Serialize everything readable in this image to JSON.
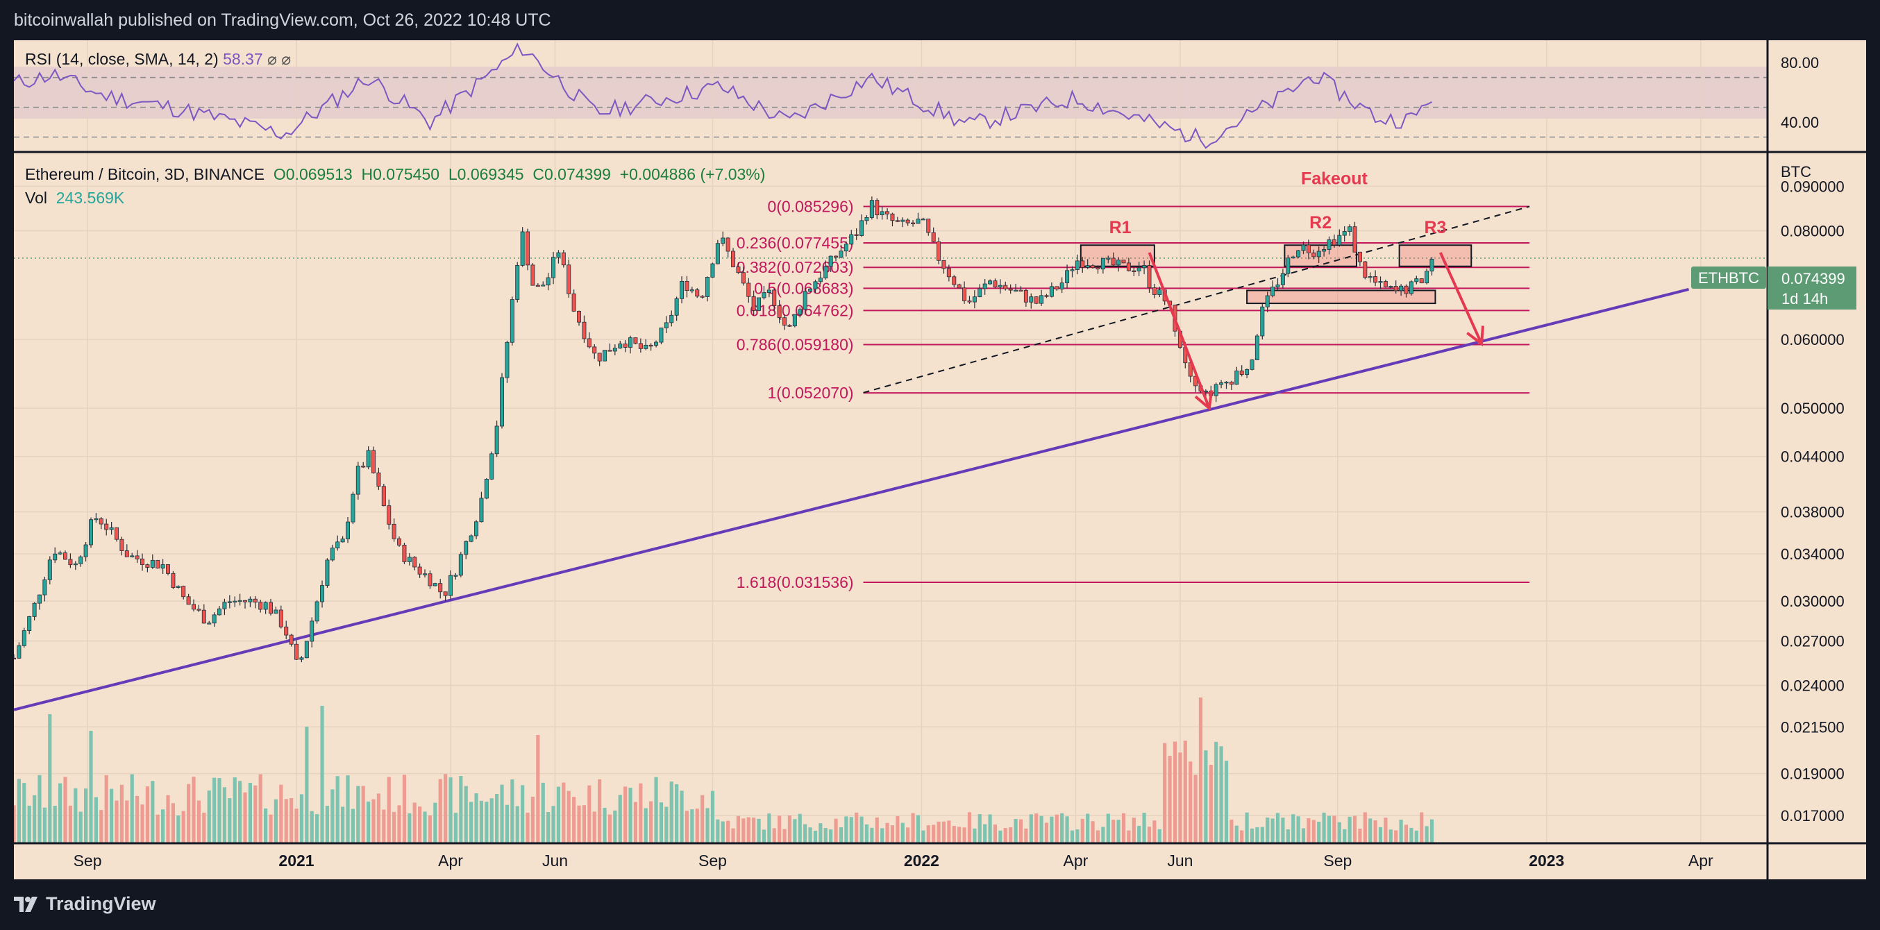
{
  "header": {
    "publish_text": "bitcoinwallah published on TradingView.com, Oct 26, 2022 10:48 UTC"
  },
  "footer": {
    "brand": "TradingView"
  },
  "colors": {
    "up": "#26a69a",
    "down": "#ef5350",
    "fib": "#c2185b",
    "trendline": "#673ab7",
    "rsi": "#7e57c2",
    "annotation": "#e53950",
    "badge": "#5d9b74",
    "background": "#f4e2cf",
    "outer": "#131722"
  },
  "rsi_panel": {
    "legend": "RSI (14, close, SMA, 14, 2)",
    "value": "58.37",
    "na_symbols": "⌀ ⌀",
    "axis_labels": [
      "80.00",
      "40.00"
    ]
  },
  "main_panel": {
    "symbol": "Ethereum / Bitcoin, 3D, BINANCE",
    "open": "O0.069513",
    "high": "H0.075450",
    "low": "L0.069345",
    "close": "C0.074399",
    "change": "+0.004886 (+7.03%)",
    "vol_label": "Vol",
    "vol_value": "243.569K",
    "price_unit": "BTC",
    "symbol_badge": "ETHBTC",
    "price_badge": "0.074399",
    "countdown": "1d 14h"
  },
  "chart_data": {
    "type": "candlestick",
    "symbol": "ETHBTC",
    "exchange": "BINANCE",
    "timeframe": "3D",
    "y_scale": "log",
    "ylim": [
      0.0158,
      0.098
    ],
    "y_ticks": [
      0.09,
      0.08,
      0.06,
      0.05,
      0.044,
      0.038,
      0.034,
      0.03,
      0.027,
      0.024,
      0.0215,
      0.019,
      0.017
    ],
    "y_tick_labels": [
      "0.090000",
      "0.080000",
      "0.060000",
      "0.050000",
      "0.044000",
      "0.038000",
      "0.034000",
      "0.030000",
      "0.027000",
      "0.024000",
      "0.021500",
      "0.019000",
      "0.017000"
    ],
    "x_range": [
      "2020-07-20",
      "2023-05-10"
    ],
    "x_ticks": [
      {
        "label": "Sep",
        "date": "2020-09-01"
      },
      {
        "label": "2021",
        "date": "2021-01-01"
      },
      {
        "label": "Apr",
        "date": "2021-04-01"
      },
      {
        "label": "Jun",
        "date": "2021-06-01"
      },
      {
        "label": "Sep",
        "date": "2021-09-01"
      },
      {
        "label": "2022",
        "date": "2022-01-01"
      },
      {
        "label": "Apr",
        "date": "2022-04-01"
      },
      {
        "label": "Jun",
        "date": "2022-06-01"
      },
      {
        "label": "Sep",
        "date": "2022-09-01"
      },
      {
        "label": "2023",
        "date": "2023-01-01"
      },
      {
        "label": "Apr",
        "date": "2023-04-01"
      }
    ],
    "price_path": [
      [
        "2020-07-20",
        0.0258
      ],
      [
        "2020-08-02",
        0.03
      ],
      [
        "2020-08-12",
        0.0345
      ],
      [
        "2020-08-25",
        0.033
      ],
      [
        "2020-09-05",
        0.0375
      ],
      [
        "2020-09-10",
        0.037
      ],
      [
        "2020-09-25",
        0.0338
      ],
      [
        "2020-10-15",
        0.033
      ],
      [
        "2020-10-28",
        0.03
      ],
      [
        "2020-11-10",
        0.0285
      ],
      [
        "2020-11-22",
        0.03
      ],
      [
        "2020-12-05",
        0.03
      ],
      [
        "2020-12-15",
        0.0297
      ],
      [
        "2020-12-25",
        0.028
      ],
      [
        "2021-01-02",
        0.025
      ],
      [
        "2021-01-10",
        0.0285
      ],
      [
        "2021-01-20",
        0.034
      ],
      [
        "2021-01-28",
        0.035
      ],
      [
        "2021-02-05",
        0.042
      ],
      [
        "2021-02-12",
        0.044
      ],
      [
        "2021-02-20",
        0.039
      ],
      [
        "2021-03-01",
        0.0345
      ],
      [
        "2021-03-10",
        0.033
      ],
      [
        "2021-03-20",
        0.0318
      ],
      [
        "2021-03-28",
        0.0305
      ],
      [
        "2021-04-05",
        0.033
      ],
      [
        "2021-04-18",
        0.0385
      ],
      [
        "2021-04-28",
        0.048
      ],
      [
        "2021-05-10",
        0.074
      ],
      [
        "2021-05-13",
        0.079
      ],
      [
        "2021-05-20",
        0.068
      ],
      [
        "2021-05-27",
        0.07
      ],
      [
        "2021-06-03",
        0.076
      ],
      [
        "2021-06-12",
        0.065
      ],
      [
        "2021-06-25",
        0.057
      ],
      [
        "2021-07-10",
        0.06
      ],
      [
        "2021-07-25",
        0.058
      ],
      [
        "2021-08-05",
        0.062
      ],
      [
        "2021-08-15",
        0.07
      ],
      [
        "2021-08-25",
        0.067
      ],
      [
        "2021-09-05",
        0.079
      ],
      [
        "2021-09-15",
        0.072
      ],
      [
        "2021-09-25",
        0.065
      ],
      [
        "2021-10-05",
        0.068
      ],
      [
        "2021-10-15",
        0.061
      ],
      [
        "2021-10-25",
        0.068
      ],
      [
        "2021-11-05",
        0.072
      ],
      [
        "2021-11-15",
        0.076
      ],
      [
        "2021-11-25",
        0.08
      ],
      [
        "2021-12-02",
        0.086
      ],
      [
        "2021-12-10",
        0.083
      ],
      [
        "2021-12-20",
        0.081
      ],
      [
        "2022-01-01",
        0.082
      ],
      [
        "2022-01-10",
        0.075
      ],
      [
        "2022-01-20",
        0.07
      ],
      [
        "2022-01-28",
        0.066
      ],
      [
        "2022-02-10",
        0.07
      ],
      [
        "2022-02-25",
        0.068
      ],
      [
        "2022-03-10",
        0.066
      ],
      [
        "2022-03-25",
        0.07
      ],
      [
        "2022-04-01",
        0.074
      ],
      [
        "2022-04-15",
        0.0735
      ],
      [
        "2022-04-30",
        0.0725
      ],
      [
        "2022-05-10",
        0.073
      ],
      [
        "2022-05-15",
        0.069
      ],
      [
        "2022-05-25",
        0.066
      ],
      [
        "2022-06-05",
        0.056
      ],
      [
        "2022-06-15",
        0.052
      ],
      [
        "2022-06-25",
        0.053
      ],
      [
        "2022-07-05",
        0.055
      ],
      [
        "2022-07-12",
        0.056
      ],
      [
        "2022-07-18",
        0.064
      ],
      [
        "2022-07-28",
        0.07
      ],
      [
        "2022-08-08",
        0.077
      ],
      [
        "2022-08-18",
        0.076
      ],
      [
        "2022-08-28",
        0.078
      ],
      [
        "2022-09-08",
        0.08
      ],
      [
        "2022-09-15",
        0.072
      ],
      [
        "2022-09-25",
        0.069
      ],
      [
        "2022-10-05",
        0.068
      ],
      [
        "2022-10-15",
        0.069
      ],
      [
        "2022-10-22",
        0.071
      ],
      [
        "2022-10-26",
        0.074399
      ]
    ],
    "volume_spikes": [
      [
        "2020-08-10",
        3.1
      ],
      [
        "2020-09-02",
        2.7
      ],
      [
        "2021-01-08",
        2.8
      ],
      [
        "2021-01-16",
        3.3
      ],
      [
        "2021-05-22",
        2.6
      ],
      [
        "2022-06-14",
        3.5
      ]
    ],
    "fib_levels": [
      {
        "ratio": "0",
        "value": 0.085296,
        "label": "0(0.085296)"
      },
      {
        "ratio": "0.236",
        "value": 0.077455,
        "label": "0.236(0.077455)"
      },
      {
        "ratio": "0.382",
        "value": 0.072603,
        "label": "0.382(0.072603)"
      },
      {
        "ratio": "0.5",
        "value": 0.068683,
        "label": "0.5(0.068683)"
      },
      {
        "ratio": "0.618",
        "value": 0.064762,
        "label": "0.618(0.064762)"
      },
      {
        "ratio": "0.786",
        "value": 0.05918,
        "label": "0.786(0.059180)"
      },
      {
        "ratio": "1",
        "value": 0.05207,
        "label": "1(0.052070)"
      },
      {
        "ratio": "1.618",
        "value": 0.031536,
        "label": "1.618(0.031536)"
      }
    ],
    "fib_range": [
      "2021-11-28",
      "2022-12-22"
    ],
    "annotations": [
      {
        "label": "R1",
        "date": "2022-04-27",
        "price": 0.0795
      },
      {
        "label": "R2",
        "date": "2022-08-22",
        "price": 0.0805
      },
      {
        "label": "R3",
        "date": "2022-10-28",
        "price": 0.0795
      },
      {
        "label": "Fakeout",
        "date": "2022-08-30",
        "price": 0.0905
      }
    ],
    "resistance_boxes": [
      {
        "from": "2022-04-04",
        "to": "2022-05-17",
        "low": 0.0728,
        "high": 0.077
      },
      {
        "from": "2022-08-01",
        "to": "2022-09-12",
        "low": 0.0728,
        "high": 0.077
      },
      {
        "from": "2022-10-07",
        "to": "2022-11-18",
        "low": 0.0728,
        "high": 0.077
      },
      {
        "from": "2022-07-10",
        "to": "2022-10-28",
        "low": 0.066,
        "high": 0.0683
      }
    ],
    "trendline": {
      "from": [
        "2020-07-20",
        0.0225
      ],
      "to": [
        "2023-03-25",
        0.0685
      ]
    },
    "dashed_trendline": {
      "from": [
        "2021-11-28",
        0.0521
      ],
      "to": [
        "2022-12-22",
        0.0853
      ]
    },
    "arrows": [
      {
        "from": [
          "2022-05-14",
          0.0755
        ],
        "to": [
          "2022-06-18",
          0.05
        ]
      },
      {
        "from": [
          "2022-10-31",
          0.0755
        ],
        "to": [
          "2022-11-24",
          0.0593
        ]
      }
    ],
    "rsi": {
      "ylim": [
        20,
        95
      ],
      "upper": 70,
      "middle": 50,
      "lower": 30,
      "ticks": [
        80,
        40
      ]
    },
    "rsi_path": [
      [
        "2020-07-20",
        66
      ],
      [
        "2020-08-12",
        72
      ],
      [
        "2020-09-10",
        58
      ],
      [
        "2020-10-28",
        48
      ],
      [
        "2020-12-25",
        32
      ],
      [
        "2021-02-12",
        70
      ],
      [
        "2021-03-20",
        40
      ],
      [
        "2021-05-13",
        90
      ],
      [
        "2021-06-25",
        46
      ],
      [
        "2021-09-05",
        64
      ],
      [
        "2021-10-15",
        40
      ],
      [
        "2021-12-02",
        70
      ],
      [
        "2022-01-28",
        38
      ],
      [
        "2022-04-01",
        56
      ],
      [
        "2022-06-15",
        28
      ],
      [
        "2022-07-28",
        55
      ],
      [
        "2022-08-18",
        72
      ],
      [
        "2022-09-25",
        42
      ],
      [
        "2022-10-15",
        42
      ],
      [
        "2022-10-26",
        58
      ]
    ]
  }
}
